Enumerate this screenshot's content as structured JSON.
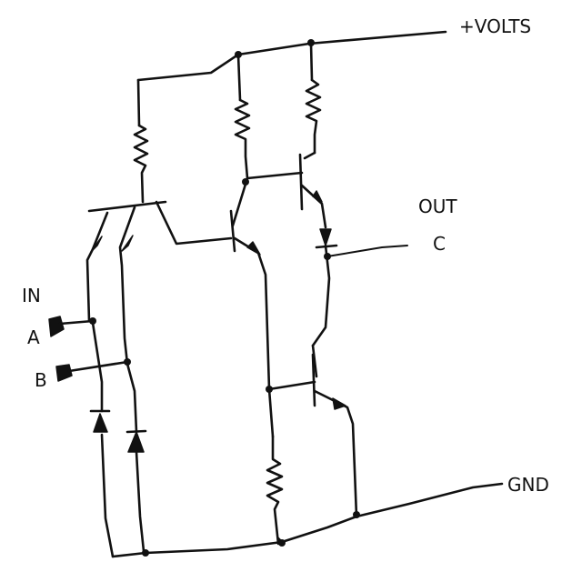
{
  "labels": {
    "supply": "+VOLTS",
    "ground": "GND",
    "input_heading": "IN",
    "input_a": "A",
    "input_b": "B",
    "output_heading": "OUT",
    "output_c": "C"
  }
}
